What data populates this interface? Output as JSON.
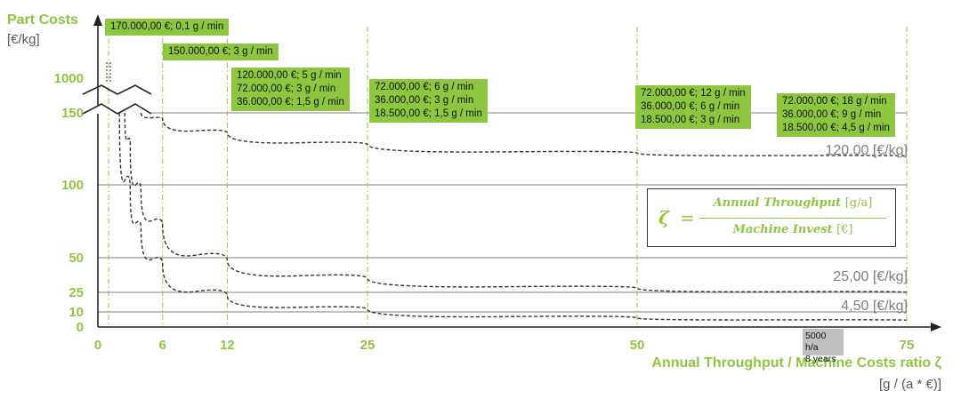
{
  "chart_data": {
    "type": "line",
    "ylabel": "Part Costs",
    "yunit": "[€/kg]",
    "xlabel": "Annual Throughput / Machine Costs ratio ζ",
    "xunit": "[g / (a * €)]",
    "xticks": [
      "0",
      "6",
      "12",
      "25",
      "50",
      "75"
    ],
    "yticks": [
      "0",
      "10",
      "25",
      "50",
      "100",
      "150",
      "1000"
    ],
    "series": [
      {
        "end_label": "120,00 [€/kg]",
        "points": [
          [
            4,
            150
          ],
          [
            6,
            146
          ],
          [
            12,
            136
          ],
          [
            25,
            128
          ],
          [
            50,
            122
          ],
          [
            75,
            120
          ]
        ]
      },
      {
        "end_label": "25,00 [€/kg]",
        "points": [
          [
            2.5,
            150
          ],
          [
            3,
            128
          ],
          [
            4,
            95
          ],
          [
            6,
            72
          ],
          [
            12,
            48
          ],
          [
            25,
            35
          ],
          [
            50,
            28
          ],
          [
            75,
            25
          ]
        ]
      },
      {
        "end_label": "4,50 [€/kg]",
        "points": [
          [
            2,
            150
          ],
          [
            3,
            95
          ],
          [
            4,
            70
          ],
          [
            6,
            45
          ],
          [
            12,
            22
          ],
          [
            25,
            12
          ],
          [
            50,
            6
          ],
          [
            75,
            4.5
          ]
        ]
      }
    ],
    "boxes": [
      {
        "x": 1,
        "lines": [
          "170.000,00 €; 0,1 g / min"
        ]
      },
      {
        "x": 6,
        "lines": [
          "150.000,00 €; 3 g / min"
        ]
      },
      {
        "x": 12,
        "lines": [
          "120.000,00 €; 5 g / min",
          "72.000,00 €; 3 g / min",
          "36.000,00 €; 1,5 g / min"
        ]
      },
      {
        "x": 25,
        "lines": [
          "72.000,00 €; 6 g / min",
          "36.000,00 €; 3 g / min",
          "18.500,00 €; 1,5 g / min"
        ]
      },
      {
        "x": 50,
        "lines": [
          "72.000,00 €; 12 g / min",
          "36.000,00 €; 6 g / min",
          "18.500,00 €; 3 g / min"
        ]
      },
      {
        "x": 75,
        "lines": [
          "72.000,00 €; 18 g / min",
          "36.000,00 €; 9 g / min",
          "18.500,00 €; 4,5 g / min"
        ]
      }
    ],
    "marker_lines": [
      "5000 h/a",
      "8 years"
    ],
    "formula": {
      "symbol": "ζ",
      "equals": "=",
      "numerator": "Annual Throughput",
      "numerator_unit": "[g/a]",
      "denominator": "Machine Invest",
      "denominator_unit": "[€]"
    }
  }
}
